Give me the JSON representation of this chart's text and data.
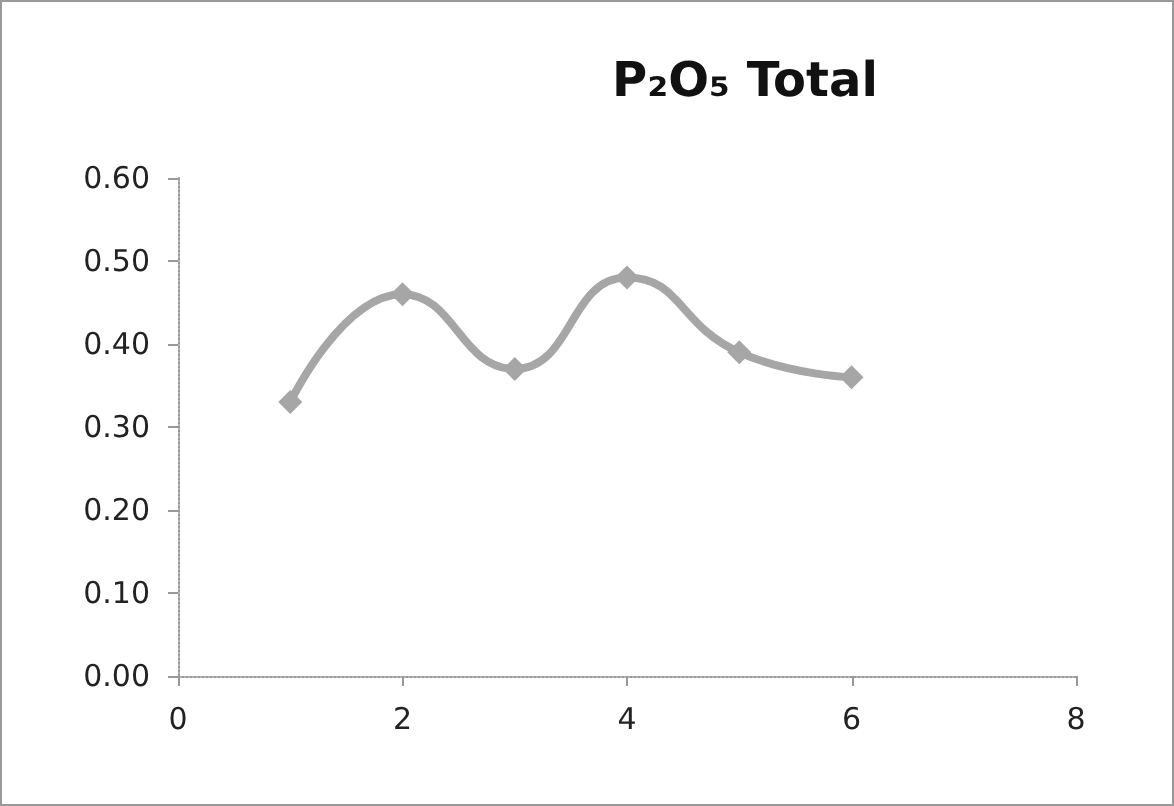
{
  "chart_data": {
    "type": "line",
    "title": "P₂O₅ Total",
    "x": [
      1,
      2,
      3,
      4,
      5,
      6
    ],
    "series": [
      {
        "color": "#a6a6a6",
        "values": [
          0.33,
          0.46,
          0.37,
          0.48,
          0.39,
          0.36
        ]
      }
    ],
    "xlim": [
      0,
      8
    ],
    "xticks": [
      0,
      2,
      4,
      6,
      8
    ],
    "ylim": [
      0,
      0.6
    ],
    "yticks": [
      {
        "value": 0,
        "label": "0.00"
      },
      {
        "value": 0.1,
        "label": "0.10"
      },
      {
        "value": 0.2,
        "label": "0.20"
      },
      {
        "value": 0.3,
        "label": "0.30"
      },
      {
        "value": 0.4,
        "label": "0.40"
      },
      {
        "value": 0.5,
        "label": "0.50"
      },
      {
        "value": 0.6,
        "label": "0.60"
      }
    ],
    "grid": false,
    "marker": "diamond",
    "line_style": "solid"
  }
}
